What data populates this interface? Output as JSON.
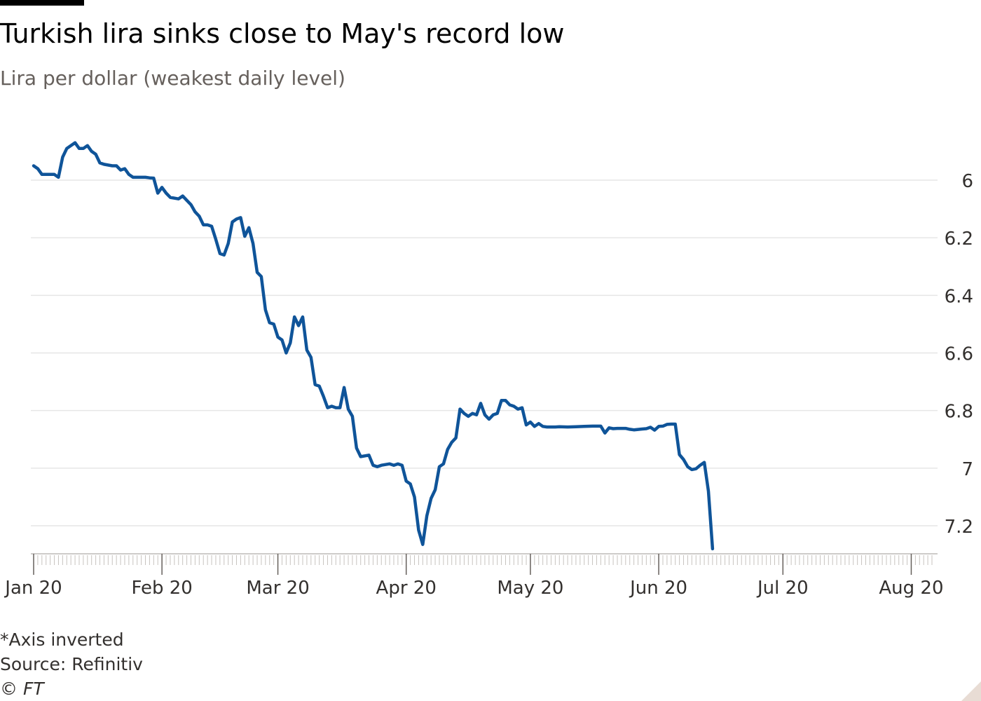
{
  "header": {
    "title": "Turkish lira sinks close to May's record low",
    "subtitle": "Lira per dollar (weakest daily level)"
  },
  "footer": {
    "note": "*Axis inverted",
    "source": "Source: Refinitiv",
    "copyright": "© FT"
  },
  "colors": {
    "line": "#0f5499",
    "grid": "#e6e6e6",
    "axis": "#66605c",
    "tick_text": "#33302e"
  },
  "chart_data": {
    "type": "line",
    "title": "Turkish lira sinks close to May's record low",
    "subtitle": "Lira per dollar (weakest daily level)",
    "xlabel": "",
    "ylabel": "Lira per dollar",
    "y_inverted": true,
    "ylim": [
      5.9,
      7.3
    ],
    "yticks": [
      6,
      6.2,
      6.4,
      6.6,
      6.8,
      7,
      7.2
    ],
    "ytick_labels": [
      "6",
      "6.2",
      "6.4",
      "6.6",
      "6.8",
      "7",
      "7.2"
    ],
    "xlim": [
      1,
      218
    ],
    "xticks": [
      {
        "day": 1,
        "label": "Jan 20"
      },
      {
        "day": 32,
        "label": "Feb 20"
      },
      {
        "day": 60,
        "label": "Mar 20"
      },
      {
        "day": 91,
        "label": "Apr 20"
      },
      {
        "day": 121,
        "label": "May 20"
      },
      {
        "day": 152,
        "label": "Jun 20"
      },
      {
        "day": 182,
        "label": "Jul 20"
      },
      {
        "day": 213,
        "label": "Aug 20"
      }
    ],
    "grid": true,
    "series": [
      {
        "name": "Lira per dollar",
        "points": [
          [
            1,
            5.95
          ],
          [
            2,
            5.96
          ],
          [
            3,
            5.98
          ],
          [
            4,
            5.98
          ],
          [
            6,
            5.98
          ],
          [
            7,
            5.99
          ],
          [
            8,
            5.92
          ],
          [
            9,
            5.89
          ],
          [
            10,
            5.88
          ],
          [
            11,
            5.87
          ],
          [
            12,
            5.89
          ],
          [
            13,
            5.89
          ],
          [
            14,
            5.88
          ],
          [
            15,
            5.9
          ],
          [
            16,
            5.91
          ],
          [
            17,
            5.94
          ],
          [
            18,
            5.945
          ],
          [
            20,
            5.95
          ],
          [
            21,
            5.95
          ],
          [
            22,
            5.965
          ],
          [
            23,
            5.96
          ],
          [
            24,
            5.98
          ],
          [
            25,
            5.99
          ],
          [
            27,
            5.99
          ],
          [
            28,
            5.99
          ],
          [
            29,
            5.992
          ],
          [
            30,
            5.993
          ],
          [
            31,
            6.045
          ],
          [
            32,
            6.025
          ],
          [
            33,
            6.045
          ],
          [
            34,
            6.06
          ],
          [
            36,
            6.065
          ],
          [
            37,
            6.055
          ],
          [
            38,
            6.07
          ],
          [
            39,
            6.085
          ],
          [
            40,
            6.11
          ],
          [
            41,
            6.125
          ],
          [
            42,
            6.155
          ],
          [
            43,
            6.155
          ],
          [
            44,
            6.16
          ],
          [
            45,
            6.205
          ],
          [
            46,
            6.255
          ],
          [
            47,
            6.26
          ],
          [
            48,
            6.22
          ],
          [
            49,
            6.145
          ],
          [
            50,
            6.135
          ],
          [
            51,
            6.13
          ],
          [
            52,
            6.195
          ],
          [
            53,
            6.165
          ],
          [
            54,
            6.22
          ],
          [
            55,
            6.32
          ],
          [
            56,
            6.335
          ],
          [
            57,
            6.45
          ],
          [
            58,
            6.495
          ],
          [
            59,
            6.5
          ],
          [
            60,
            6.545
          ],
          [
            61,
            6.555
          ],
          [
            62,
            6.6
          ],
          [
            63,
            6.565
          ],
          [
            64,
            6.475
          ],
          [
            65,
            6.505
          ],
          [
            66,
            6.475
          ],
          [
            67,
            6.59
          ],
          [
            68,
            6.615
          ],
          [
            69,
            6.71
          ],
          [
            70,
            6.715
          ],
          [
            71,
            6.75
          ],
          [
            72,
            6.79
          ],
          [
            73,
            6.785
          ],
          [
            74,
            6.79
          ],
          [
            75,
            6.79
          ],
          [
            76,
            6.72
          ],
          [
            77,
            6.795
          ],
          [
            78,
            6.82
          ],
          [
            79,
            6.93
          ],
          [
            80,
            6.96
          ],
          [
            82,
            6.955
          ],
          [
            83,
            6.99
          ],
          [
            84,
            6.995
          ],
          [
            85,
            6.99
          ],
          [
            87,
            6.985
          ],
          [
            88,
            6.99
          ],
          [
            89,
            6.985
          ],
          [
            90,
            6.99
          ],
          [
            91,
            7.045
          ],
          [
            92,
            7.055
          ],
          [
            93,
            7.1
          ],
          [
            94,
            7.215
          ],
          [
            95,
            7.265
          ],
          [
            96,
            7.165
          ],
          [
            97,
            7.105
          ],
          [
            98,
            7.075
          ],
          [
            99,
            6.995
          ],
          [
            100,
            6.985
          ],
          [
            101,
            6.935
          ],
          [
            102,
            6.91
          ],
          [
            103,
            6.895
          ],
          [
            104,
            6.795
          ],
          [
            105,
            6.81
          ],
          [
            106,
            6.82
          ],
          [
            107,
            6.81
          ],
          [
            108,
            6.815
          ],
          [
            109,
            6.775
          ],
          [
            110,
            6.815
          ],
          [
            111,
            6.83
          ],
          [
            112,
            6.815
          ],
          [
            113,
            6.81
          ],
          [
            114,
            6.765
          ],
          [
            115,
            6.765
          ],
          [
            116,
            6.78
          ],
          [
            117,
            6.785
          ],
          [
            118,
            6.795
          ],
          [
            119,
            6.79
          ],
          [
            120,
            6.85
          ],
          [
            121,
            6.84
          ],
          [
            122,
            6.855
          ],
          [
            123,
            6.845
          ],
          [
            124,
            6.855
          ],
          [
            125,
            6.857
          ],
          [
            127,
            6.857
          ],
          [
            128,
            6.856
          ],
          [
            130,
            6.857
          ],
          [
            132,
            6.856
          ],
          [
            134,
            6.855
          ],
          [
            136,
            6.854
          ],
          [
            137,
            6.854
          ],
          [
            138,
            6.854
          ],
          [
            139,
            6.878
          ],
          [
            140,
            6.86
          ],
          [
            141,
            6.863
          ],
          [
            142,
            6.862
          ],
          [
            144,
            6.862
          ],
          [
            145,
            6.865
          ],
          [
            146,
            6.867
          ],
          [
            148,
            6.864
          ],
          [
            149,
            6.863
          ],
          [
            150,
            6.858
          ],
          [
            151,
            6.868
          ],
          [
            152,
            6.855
          ],
          [
            153,
            6.854
          ],
          [
            154,
            6.848
          ],
          [
            155,
            6.847
          ],
          [
            156,
            6.847
          ],
          [
            157,
            6.953
          ],
          [
            158,
            6.97
          ],
          [
            159,
            6.995
          ],
          [
            160,
            7.005
          ],
          [
            161,
            7.002
          ],
          [
            162,
            6.99
          ],
          [
            163,
            6.98
          ],
          [
            164,
            7.08
          ],
          [
            165,
            7.28
          ]
        ]
      }
    ]
  }
}
